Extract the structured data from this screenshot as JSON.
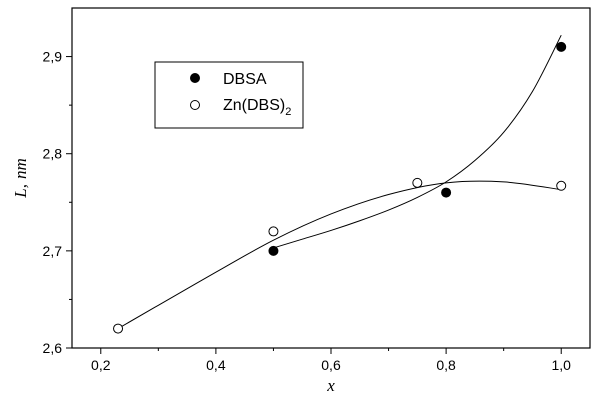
{
  "chart_data": {
    "type": "scatter",
    "xlabel": "x",
    "ylabel_main": "L,",
    "ylabel_unit": "nm",
    "xlim": [
      0.15,
      1.05
    ],
    "ylim": [
      2.6,
      2.95
    ],
    "x_ticks": [
      0.2,
      0.4,
      0.6,
      0.8,
      1.0
    ],
    "x_tick_labels": [
      "0,2",
      "0,4",
      "0,6",
      "0,8",
      "1,0"
    ],
    "y_ticks": [
      2.6,
      2.7,
      2.8,
      2.9
    ],
    "y_tick_labels": [
      "2,6",
      "2,7",
      "2,8",
      "2,9"
    ],
    "grid": false,
    "legend_position": "top-left",
    "series": [
      {
        "name": "DBSA",
        "marker": "filled-circle",
        "color": "#000000",
        "x": [
          0.5,
          0.8,
          1.0
        ],
        "y": [
          2.7,
          2.76,
          2.91
        ],
        "fit_curve_x": [
          0.5,
          0.55,
          0.6,
          0.65,
          0.7,
          0.75,
          0.8,
          0.85,
          0.9,
          0.95,
          1.0
        ],
        "fit_curve_y": [
          2.703,
          2.712,
          2.721,
          2.731,
          2.742,
          2.755,
          2.771,
          2.793,
          2.822,
          2.864,
          2.922
        ]
      },
      {
        "name": "Zn(DBS)",
        "name_subscript": "2",
        "marker": "open-circle",
        "color": "#000000",
        "x": [
          0.23,
          0.5,
          0.75,
          1.0
        ],
        "y": [
          2.62,
          2.72,
          2.77,
          2.767
        ],
        "fit_curve_x": [
          0.23,
          0.3,
          0.4,
          0.5,
          0.6,
          0.7,
          0.8,
          0.9,
          1.0
        ],
        "fit_curve_y": [
          2.62,
          2.644,
          2.678,
          2.711,
          2.738,
          2.758,
          2.77,
          2.771,
          2.763
        ]
      }
    ]
  }
}
